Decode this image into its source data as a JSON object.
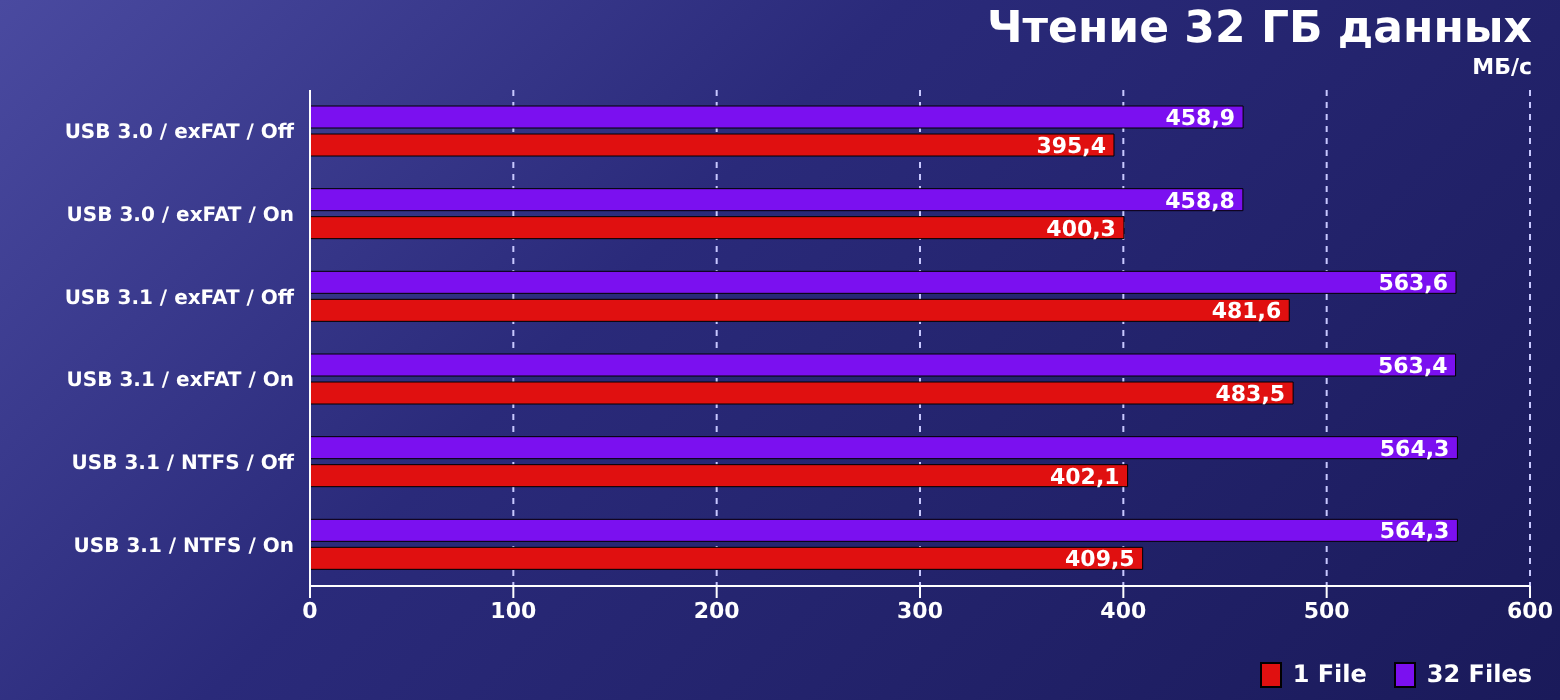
{
  "chart_data": {
    "type": "bar",
    "orientation": "horizontal",
    "title": "Чтение 32 ГБ данных",
    "subtitle": "МБ/с",
    "categories": [
      "USB 3.0 / exFAT / Off",
      "USB 3.0 / exFAT / On",
      "USB 3.1 / exFAT / Off",
      "USB 3.1 / exFAT / On",
      "USB 3.1 / NTFS / Off",
      "USB 3.1 / NTFS / On"
    ],
    "series": [
      {
        "name": "32 Files",
        "color": "#7b10f0",
        "values": [
          458.9,
          458.8,
          563.6,
          563.4,
          564.3,
          564.3
        ],
        "value_labels": [
          "458,9",
          "458,8",
          "563,6",
          "563,4",
          "564,3",
          "564,3"
        ]
      },
      {
        "name": "1 File",
        "color": "#e01010",
        "values": [
          395.4,
          400.3,
          481.6,
          483.5,
          402.1,
          409.5
        ],
        "value_labels": [
          "395,4",
          "400,3",
          "481,6",
          "483,5",
          "402,1",
          "409,5"
        ]
      }
    ],
    "xlim": [
      0,
      600
    ],
    "xticks": [
      0,
      100,
      200,
      300,
      400,
      500,
      600
    ],
    "grid": "x",
    "legend": "bottom right"
  }
}
